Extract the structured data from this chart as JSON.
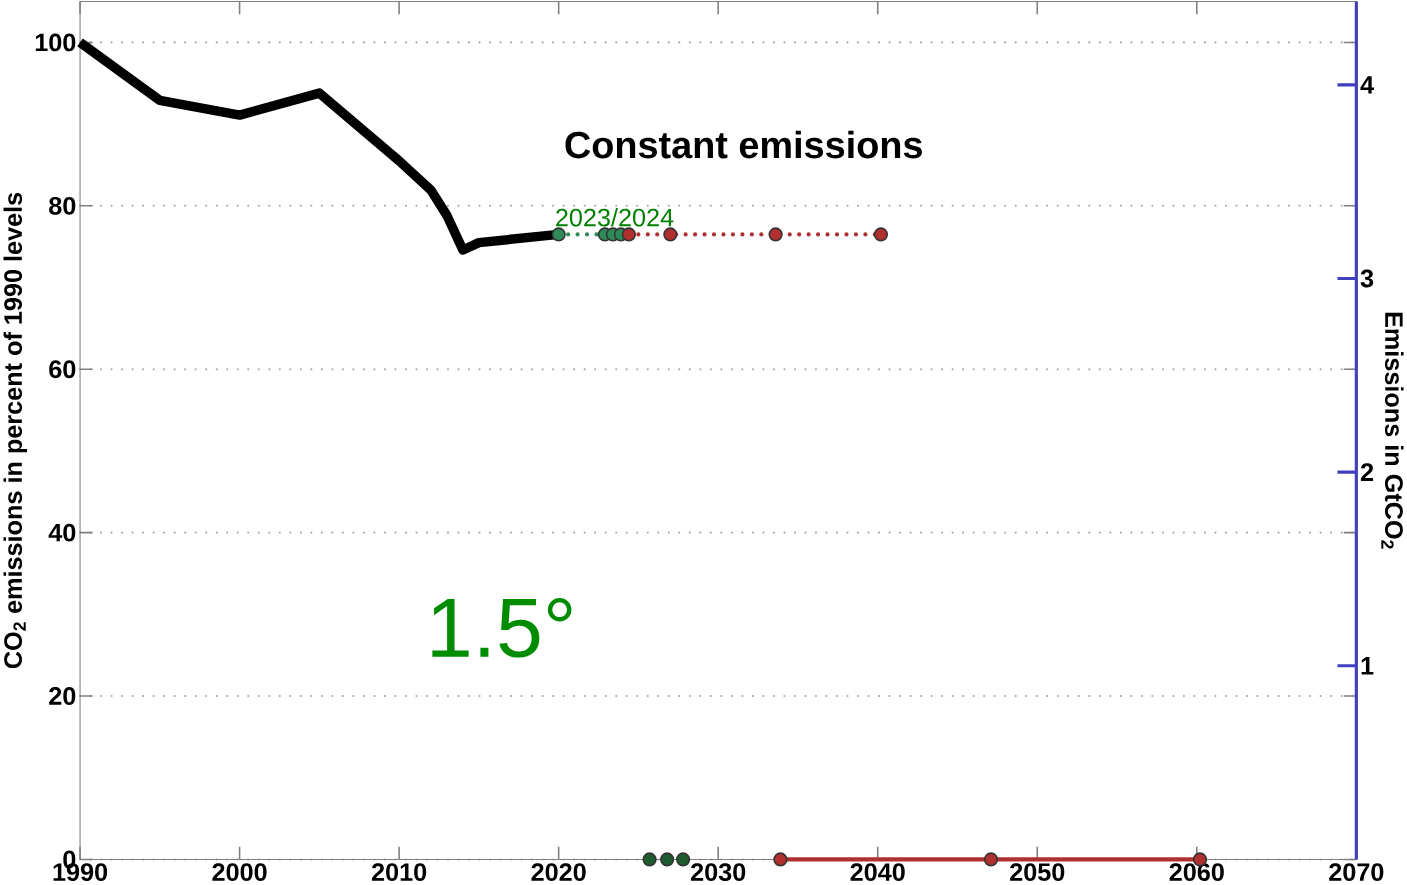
{
  "chart_data": {
    "type": "line",
    "title": "Constant emissions",
    "ylabel": "CO$_{2}$ emissions in percent of 1990 levels",
    "y2label": "Emissions in GtCO$_{2}$",
    "xlim": [
      1990,
      2070
    ],
    "xticks": [
      1990,
      2000,
      2010,
      2020,
      2030,
      2040,
      2050,
      2060,
      2070
    ],
    "ylim": [
      0,
      105
    ],
    "yticks": [
      0,
      20,
      40,
      60,
      80,
      100
    ],
    "y2lim": [
      0,
      4.43
    ],
    "y2ticks": [
      1,
      2,
      3,
      4
    ],
    "grid": "y",
    "series": [
      {
        "color": "#000000",
        "line_style": "solid",
        "marker": "none",
        "x": [
          1990,
          1995,
          2000,
          2005,
          2010,
          2012,
          2013,
          2014,
          2015,
          2020
        ],
        "values": [
          100,
          92.9,
          91.1,
          93.8,
          85.5,
          81.9,
          78.8,
          74.6,
          75.5,
          76.5
        ]
      },
      {
        "color": "#2e8b57",
        "line_style": "dotted",
        "marker": "circle",
        "x": [
          2020,
          2022.9,
          2023.4,
          2023.9
        ],
        "values": [
          76.5,
          76.5,
          76.5,
          76.5
        ]
      },
      {
        "color": "#b03030",
        "line_style": "dotted",
        "marker": "circle",
        "x": [
          2024.4,
          2027,
          2033.6,
          2040.2
        ],
        "values": [
          76.5,
          76.5,
          76.5,
          76.5
        ]
      },
      {
        "type": "scatter",
        "color": "#1e5b2e",
        "marker": "circle",
        "x": [
          2025.7,
          2026.8,
          2027.8
        ],
        "values": [
          0,
          0,
          0
        ]
      },
      {
        "color": "#b03030",
        "line_style": "solid",
        "marker": "circle",
        "x": [
          2033.9,
          2047.1,
          2060.2
        ],
        "values": [
          0,
          0,
          0
        ]
      }
    ],
    "annotations": [
      {
        "text": "2023/2024",
        "x": 2023.5,
        "y": 76.5
      },
      "1.5°"
    ]
  }
}
